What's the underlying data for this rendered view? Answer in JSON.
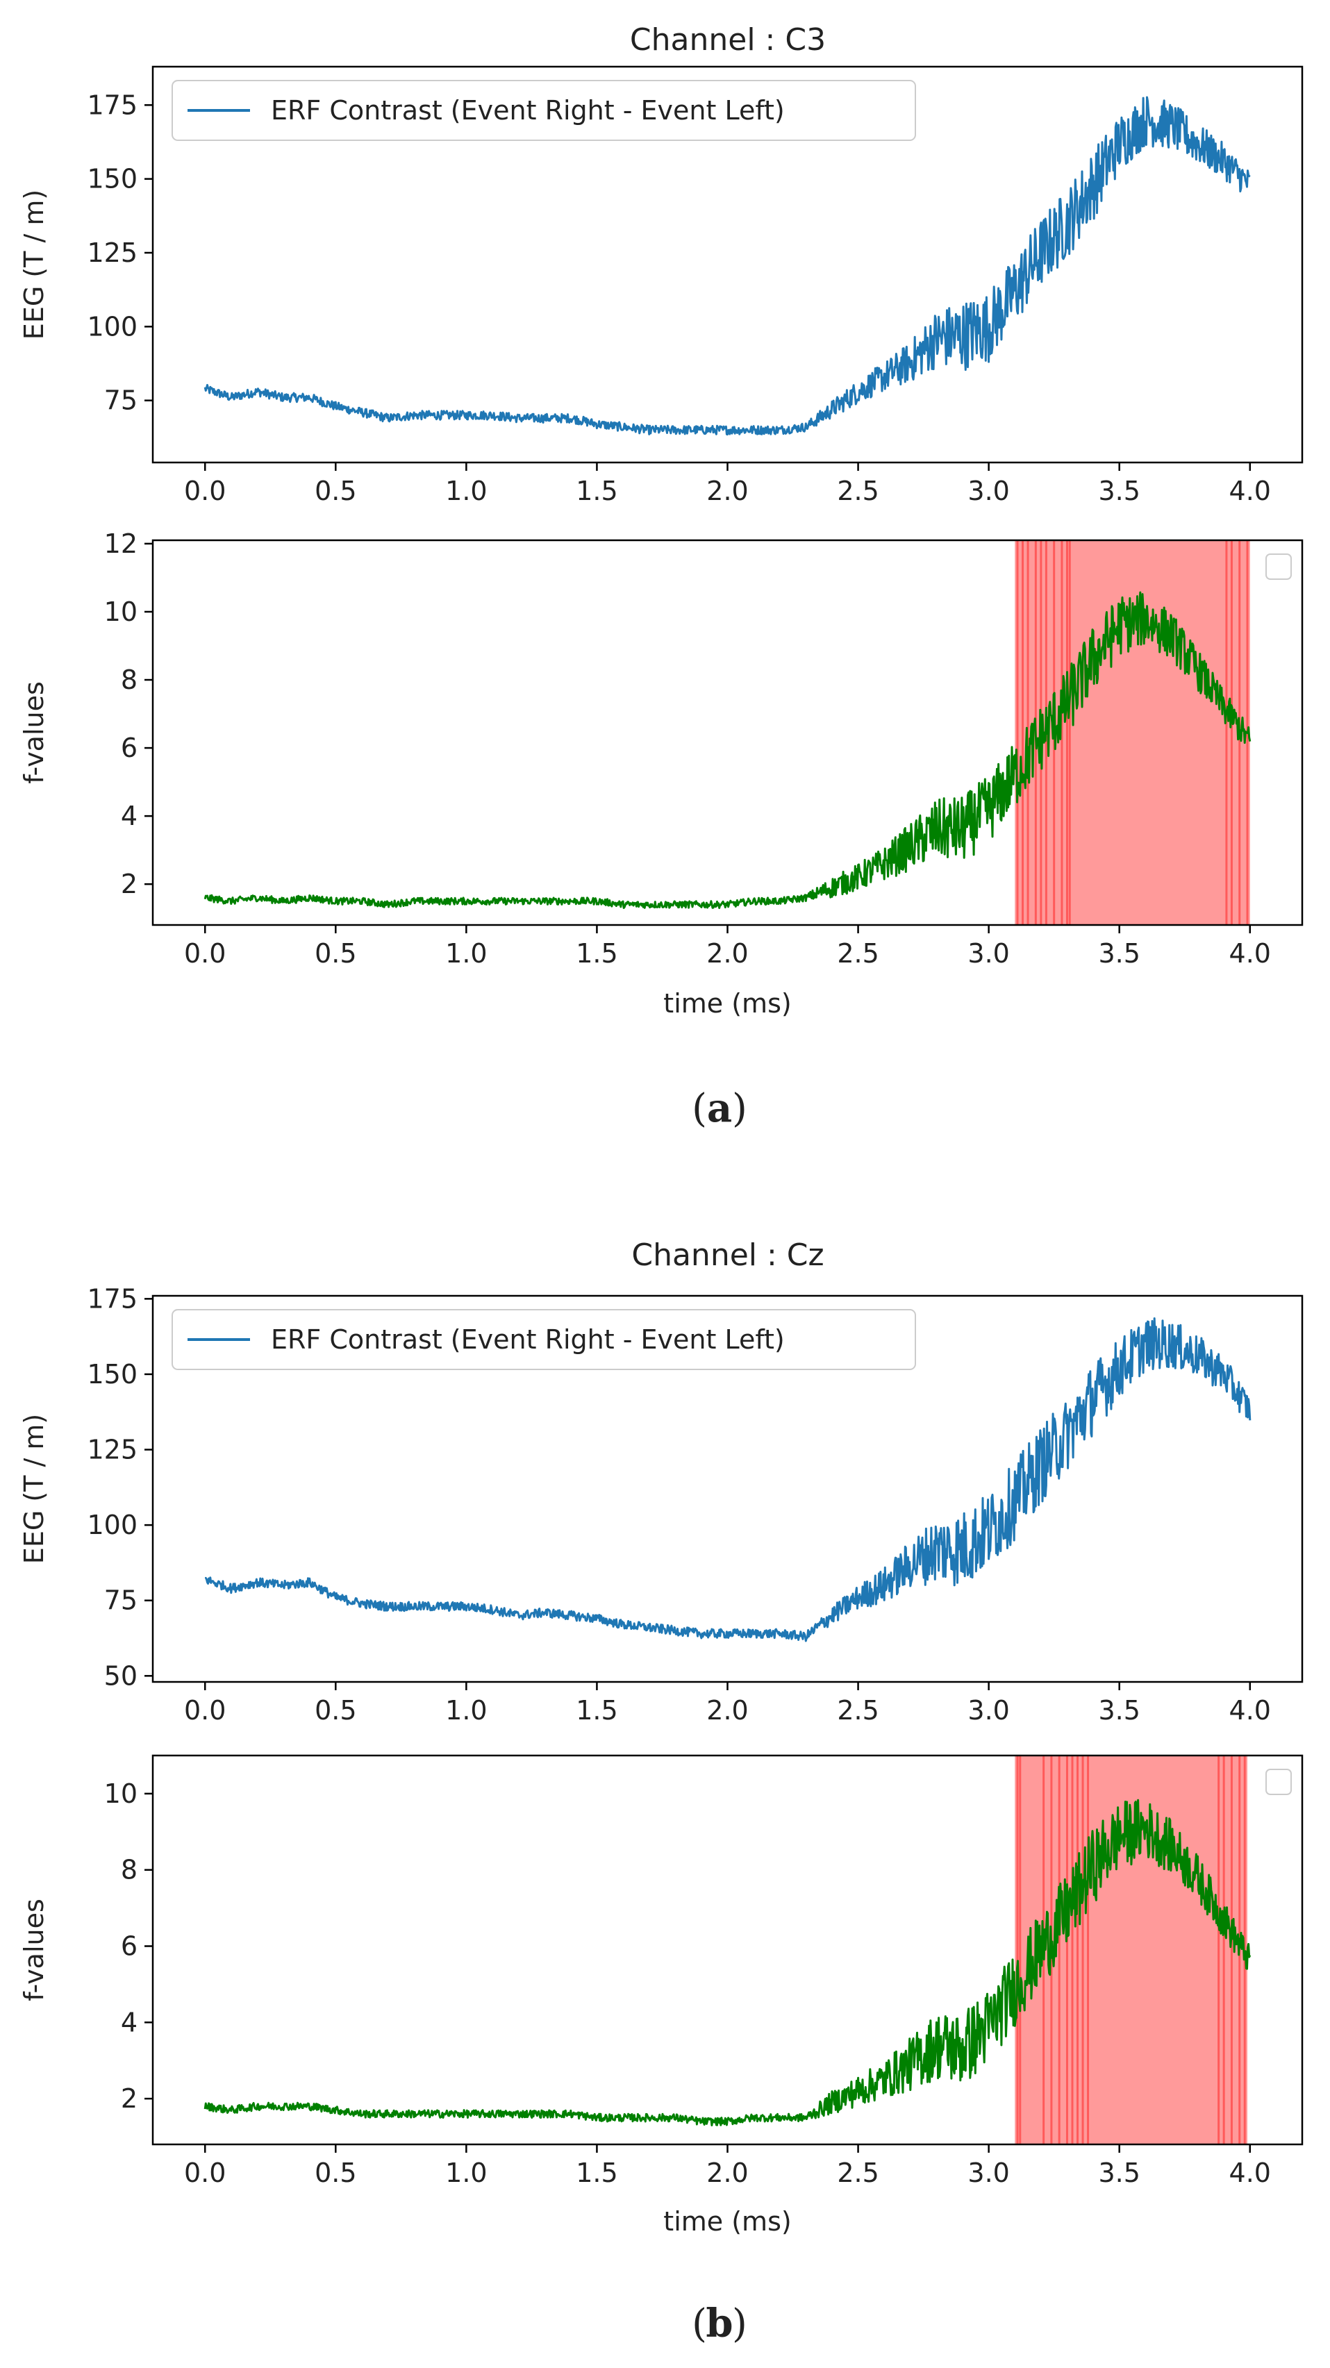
{
  "colors": {
    "erf_line": "#1f77b4",
    "f_line": "#008000",
    "significance_fill": "#ff9a9a",
    "significance_line": "#ff4b4b",
    "axis": "#000000",
    "text": "#222222"
  },
  "panels": [
    {
      "id": "a",
      "caption_label": "a",
      "channel_title": "Channel : C3"
    },
    {
      "id": "b",
      "caption_label": "b",
      "channel_title": "Channel : Cz"
    }
  ],
  "chart_data": [
    {
      "type": "line",
      "panel": "a",
      "title": "Channel : C3",
      "xlabel": "",
      "ylabel": "EEG (T / m)",
      "xlim": [
        -0.2,
        4.2
      ],
      "ylim": [
        54,
        188
      ],
      "xticks": [
        0.0,
        0.5,
        1.0,
        1.5,
        2.0,
        2.5,
        3.0,
        3.5,
        4.0
      ],
      "xtick_labels": [
        "0.0",
        "0.5",
        "1.0",
        "1.5",
        "2.0",
        "2.5",
        "3.0",
        "3.5",
        "4.0"
      ],
      "yticks": [
        75,
        100,
        125,
        150,
        175
      ],
      "ytick_labels": [
        "75",
        "100",
        "125",
        "150",
        "175"
      ],
      "legend": {
        "entries": [
          "ERF Contrast (Event Right - Event Left)"
        ],
        "position": "upper-left"
      },
      "series": [
        {
          "name": "ERF Contrast (Event Right - Event Left)",
          "color": "#1f77b4",
          "x": [
            0.0,
            0.1,
            0.2,
            0.3,
            0.4,
            0.5,
            0.6,
            0.7,
            0.8,
            0.9,
            1.0,
            1.1,
            1.2,
            1.3,
            1.4,
            1.5,
            1.6,
            1.7,
            1.8,
            1.9,
            2.0,
            2.1,
            2.2,
            2.3,
            2.4,
            2.5,
            2.6,
            2.7,
            2.8,
            2.9,
            3.0,
            3.1,
            3.2,
            3.3,
            3.4,
            3.5,
            3.6,
            3.7,
            3.8,
            3.9,
            4.0
          ],
          "values": [
            79,
            76,
            78,
            76,
            76,
            73,
            71,
            69,
            70,
            70,
            70,
            70,
            69,
            69,
            69,
            67,
            66,
            65,
            65,
            65,
            65,
            65,
            65,
            66,
            72,
            78,
            83,
            88,
            96,
            97,
            100,
            112,
            125,
            135,
            148,
            162,
            170,
            168,
            162,
            156,
            148
          ],
          "noise": [
            1.5,
            1.5,
            1.5,
            1.5,
            1.5,
            1.5,
            1.5,
            1.5,
            1.5,
            1.5,
            1.5,
            1.5,
            1.5,
            1.5,
            1.5,
            1.5,
            1.5,
            1.5,
            1.5,
            1.5,
            1.5,
            1.5,
            1.5,
            1.5,
            3,
            4,
            5,
            7,
            10,
            12,
            12,
            12,
            12,
            12,
            12,
            10,
            9,
            8,
            7,
            6,
            5
          ]
        }
      ]
    },
    {
      "type": "line",
      "panel": "a",
      "title": "",
      "xlabel": "time (ms)",
      "ylabel": "f-values",
      "xlim": [
        -0.2,
        4.2
      ],
      "ylim": [
        0.8,
        12.1
      ],
      "xticks": [
        0.0,
        0.5,
        1.0,
        1.5,
        2.0,
        2.5,
        3.0,
        3.5,
        4.0
      ],
      "xtick_labels": [
        "0.0",
        "0.5",
        "1.0",
        "1.5",
        "2.0",
        "2.5",
        "3.0",
        "3.5",
        "4.0"
      ],
      "yticks": [
        2,
        4,
        6,
        8,
        10,
        12
      ],
      "ytick_labels": [
        "2",
        "4",
        "6",
        "8",
        "10",
        "12"
      ],
      "legend": {
        "entries": [],
        "position": "upper-right"
      },
      "significant_region": [
        3.1,
        4.0
      ],
      "significant_lines": [
        3.11,
        3.13,
        3.15,
        3.18,
        3.2,
        3.22,
        3.25,
        3.28,
        3.3,
        3.31,
        3.91,
        3.93,
        3.96,
        3.99
      ],
      "series": [
        {
          "name": "f-values",
          "color": "#008000",
          "x": [
            0.0,
            0.1,
            0.2,
            0.3,
            0.4,
            0.5,
            0.6,
            0.7,
            0.8,
            0.9,
            1.0,
            1.1,
            1.2,
            1.3,
            1.4,
            1.5,
            1.6,
            1.7,
            1.8,
            1.9,
            2.0,
            2.1,
            2.2,
            2.3,
            2.4,
            2.5,
            2.6,
            2.7,
            2.8,
            2.9,
            3.0,
            3.1,
            3.2,
            3.3,
            3.4,
            3.5,
            3.6,
            3.7,
            3.8,
            3.9,
            4.0
          ],
          "values": [
            1.6,
            1.5,
            1.6,
            1.5,
            1.6,
            1.5,
            1.5,
            1.4,
            1.5,
            1.5,
            1.5,
            1.5,
            1.5,
            1.5,
            1.5,
            1.5,
            1.4,
            1.4,
            1.4,
            1.4,
            1.4,
            1.5,
            1.5,
            1.6,
            1.9,
            2.2,
            2.6,
            3.1,
            3.6,
            3.6,
            4.2,
            5.2,
            6.3,
            7.3,
            8.6,
            9.6,
            9.8,
            9.3,
            8.3,
            7.2,
            6.2
          ],
          "noise": [
            0.1,
            0.1,
            0.1,
            0.1,
            0.1,
            0.1,
            0.1,
            0.1,
            0.1,
            0.1,
            0.1,
            0.1,
            0.1,
            0.1,
            0.1,
            0.1,
            0.1,
            0.1,
            0.1,
            0.1,
            0.1,
            0.1,
            0.1,
            0.1,
            0.3,
            0.4,
            0.5,
            0.7,
            0.9,
            1.0,
            1.0,
            1.0,
            1.0,
            1.0,
            1.0,
            0.9,
            0.8,
            0.7,
            0.6,
            0.5,
            0.4
          ]
        }
      ]
    },
    {
      "type": "line",
      "panel": "b",
      "title": "Channel : Cz",
      "xlabel": "",
      "ylabel": "EEG (T / m)",
      "xlim": [
        -0.2,
        4.2
      ],
      "ylim": [
        48,
        176
      ],
      "xticks": [
        0.0,
        0.5,
        1.0,
        1.5,
        2.0,
        2.5,
        3.0,
        3.5,
        4.0
      ],
      "xtick_labels": [
        "0.0",
        "0.5",
        "1.0",
        "1.5",
        "2.0",
        "2.5",
        "3.0",
        "3.5",
        "4.0"
      ],
      "yticks": [
        50,
        75,
        100,
        125,
        150,
        175
      ],
      "ytick_labels": [
        "50",
        "75",
        "100",
        "125",
        "150",
        "175"
      ],
      "legend": {
        "entries": [
          "ERF Contrast (Event Right - Event Left)"
        ],
        "position": "upper-left"
      },
      "series": [
        {
          "name": "ERF Contrast (Event Right - Event Left)",
          "color": "#1f77b4",
          "x": [
            0.0,
            0.1,
            0.2,
            0.3,
            0.4,
            0.5,
            0.6,
            0.7,
            0.8,
            0.9,
            1.0,
            1.1,
            1.2,
            1.3,
            1.4,
            1.5,
            1.6,
            1.7,
            1.8,
            1.9,
            2.0,
            2.1,
            2.2,
            2.3,
            2.4,
            2.5,
            2.6,
            2.7,
            2.8,
            2.9,
            3.0,
            3.1,
            3.2,
            3.3,
            3.4,
            3.5,
            3.6,
            3.7,
            3.8,
            3.9,
            4.0
          ],
          "values": [
            82,
            79,
            81,
            80,
            81,
            76,
            74,
            73,
            73,
            73,
            73,
            72,
            70,
            71,
            70,
            69,
            67,
            66,
            65,
            64,
            64,
            64,
            64,
            63,
            70,
            76,
            80,
            87,
            92,
            92,
            98,
            108,
            120,
            130,
            142,
            152,
            160,
            160,
            156,
            150,
            138
          ],
          "noise": [
            1.5,
            1.5,
            1.5,
            1.5,
            1.5,
            1.5,
            1.5,
            1.5,
            1.5,
            1.5,
            1.5,
            1.5,
            1.5,
            1.5,
            1.5,
            1.5,
            1.5,
            1.5,
            1.5,
            1.5,
            1.5,
            1.5,
            1.5,
            1.5,
            3,
            4,
            6,
            8,
            11,
            13,
            13,
            13,
            13,
            12,
            12,
            10,
            9,
            8,
            7,
            6,
            5
          ]
        }
      ]
    },
    {
      "type": "line",
      "panel": "b",
      "title": "",
      "xlabel": "time (ms)",
      "ylabel": "f-values",
      "xlim": [
        -0.2,
        4.2
      ],
      "ylim": [
        0.8,
        11.0
      ],
      "xticks": [
        0.0,
        0.5,
        1.0,
        1.5,
        2.0,
        2.5,
        3.0,
        3.5,
        4.0
      ],
      "xtick_labels": [
        "0.0",
        "0.5",
        "1.0",
        "1.5",
        "2.0",
        "2.5",
        "3.0",
        "3.5",
        "4.0"
      ],
      "yticks": [
        2,
        4,
        6,
        8,
        10
      ],
      "ytick_labels": [
        "2",
        "4",
        "6",
        "8",
        "10"
      ],
      "legend": {
        "entries": [],
        "position": "upper-right"
      },
      "significant_region": [
        3.1,
        3.99
      ],
      "significant_lines": [
        3.11,
        3.12,
        3.21,
        3.24,
        3.27,
        3.3,
        3.32,
        3.34,
        3.36,
        3.38,
        3.88,
        3.9,
        3.93,
        3.96,
        3.98
      ],
      "series": [
        {
          "name": "f-values",
          "color": "#008000",
          "x": [
            0.0,
            0.1,
            0.2,
            0.3,
            0.4,
            0.5,
            0.6,
            0.7,
            0.8,
            0.9,
            1.0,
            1.1,
            1.2,
            1.3,
            1.4,
            1.5,
            1.6,
            1.7,
            1.8,
            1.9,
            2.0,
            2.1,
            2.2,
            2.3,
            2.4,
            2.5,
            2.6,
            2.7,
            2.8,
            2.9,
            3.0,
            3.1,
            3.2,
            3.3,
            3.4,
            3.5,
            3.6,
            3.7,
            3.8,
            3.9,
            4.0
          ],
          "values": [
            1.8,
            1.7,
            1.8,
            1.8,
            1.8,
            1.7,
            1.6,
            1.6,
            1.6,
            1.6,
            1.6,
            1.6,
            1.6,
            1.6,
            1.6,
            1.5,
            1.5,
            1.5,
            1.5,
            1.4,
            1.4,
            1.5,
            1.5,
            1.5,
            1.9,
            2.2,
            2.5,
            2.9,
            3.4,
            3.3,
            3.9,
            4.9,
            5.9,
            6.9,
            8.1,
            8.9,
            9.1,
            8.6,
            7.8,
            6.7,
            5.6
          ],
          "noise": [
            0.1,
            0.1,
            0.1,
            0.1,
            0.1,
            0.1,
            0.1,
            0.1,
            0.1,
            0.1,
            0.1,
            0.1,
            0.1,
            0.1,
            0.1,
            0.1,
            0.1,
            0.1,
            0.1,
            0.1,
            0.1,
            0.1,
            0.1,
            0.1,
            0.3,
            0.4,
            0.5,
            0.7,
            0.9,
            1.0,
            1.0,
            1.0,
            1.0,
            1.0,
            1.0,
            0.9,
            0.8,
            0.7,
            0.6,
            0.5,
            0.4
          ]
        }
      ]
    }
  ]
}
